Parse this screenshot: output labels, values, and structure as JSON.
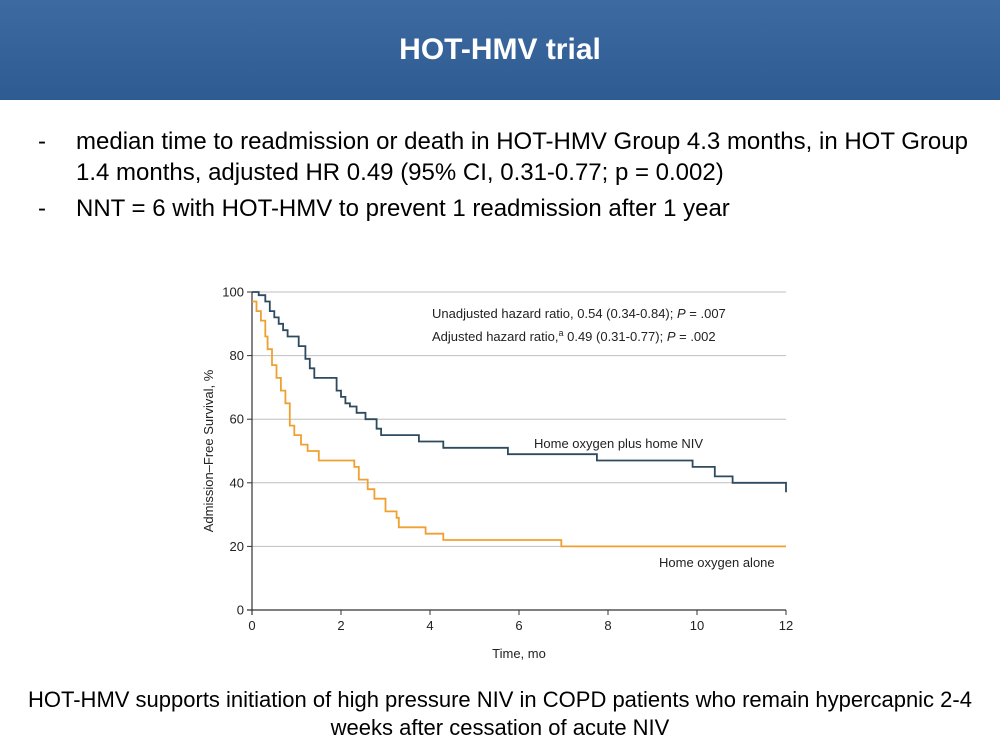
{
  "slide": {
    "title": "HOT-HMV trial",
    "bullets": [
      "median time to readmission or death in HOT-HMV Group 4.3 months, in HOT Group 1.4 months, adjusted HR 0.49 (95% CI, 0.31-0.77; p = 0.002)",
      "NNT = 6 with HOT-HMV to prevent 1 readmission after 1 year"
    ],
    "bullet_marker": "-",
    "footer": "HOT-HMV supports initiation of high pressure NIV in COPD patients who remain hypercapnic 2-4 weeks after cessation of acute NIV"
  },
  "chart_data": {
    "type": "line",
    "step": true,
    "xlabel": "Time, mo",
    "ylabel": "Admission–Free Survival, %",
    "xlim": [
      0,
      12
    ],
    "ylim": [
      0,
      100
    ],
    "xticks": [
      0,
      2,
      4,
      6,
      8,
      10,
      12
    ],
    "yticks": [
      0,
      20,
      40,
      60,
      80,
      100
    ],
    "grid": "horizontal",
    "annotations": [
      {
        "prefix": "Unadjusted hazard ratio, 0.54 (0.34-0.84); ",
        "p_label": "P",
        "suffix": " = .007"
      },
      {
        "prefix": "Adjusted hazard ratio,",
        "superscript": "a",
        "middle": " 0.49 (0.31-0.77); ",
        "p_label": "P",
        "suffix": " = .002"
      }
    ],
    "series": [
      {
        "name": "Home oxygen plus home NIV",
        "color": "#2d4a5e",
        "x": [
          0,
          0.15,
          0.3,
          0.4,
          0.5,
          0.6,
          0.7,
          0.8,
          1.05,
          1.2,
          1.3,
          1.4,
          1.9,
          2.0,
          2.1,
          2.2,
          2.35,
          2.55,
          2.8,
          2.9,
          3.05,
          3.75,
          4.3,
          5.75,
          7.75,
          9.9,
          10.4,
          10.8,
          12.0
        ],
        "y": [
          100,
          99,
          97,
          94,
          92,
          90,
          88,
          86,
          83,
          79,
          76,
          73,
          69,
          67,
          65,
          64,
          62,
          60,
          57,
          55,
          55,
          53,
          51,
          49,
          47,
          45,
          42,
          40,
          37
        ]
      },
      {
        "name": "Home oxygen alone",
        "color": "#f0a030",
        "x": [
          0,
          0.1,
          0.2,
          0.3,
          0.35,
          0.45,
          0.55,
          0.65,
          0.75,
          0.85,
          0.95,
          1.1,
          1.25,
          1.5,
          2.3,
          2.4,
          2.6,
          2.75,
          3.0,
          3.25,
          3.3,
          3.9,
          4.3,
          6.95,
          12.0
        ],
        "y": [
          97,
          94,
          91,
          86,
          82,
          77,
          73,
          69,
          65,
          58,
          55,
          52,
          50,
          47,
          45,
          41,
          38,
          35,
          31,
          29,
          26,
          24,
          22,
          20,
          20
        ]
      }
    ]
  }
}
